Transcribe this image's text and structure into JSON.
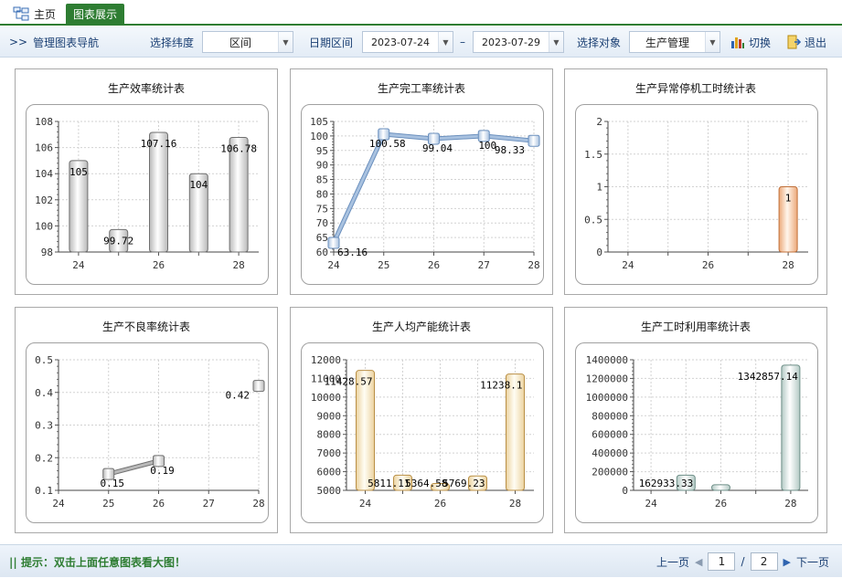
{
  "tabs": {
    "home": "主页",
    "active": "图表展示"
  },
  "toolbar": {
    "nav": "管理图表导航",
    "dim_label": "选择纬度",
    "dim_value": "区间",
    "date_label": "日期区间",
    "date_from": "2023-07-24",
    "date_sep": "–",
    "date_to": "2023-07-29",
    "object_label": "选择对象",
    "object_value": "生产管理",
    "switch_label": "切换",
    "exit_label": "退出"
  },
  "footer": {
    "hint": "|| 提示：双击上面任意图表看大图！",
    "prev": "上一页",
    "page": "1",
    "sep": "/",
    "total": "2",
    "next": "下一页"
  },
  "colors": {
    "accent": "#2e7d32",
    "nav_text": "#1a3f73"
  },
  "chart_data": [
    {
      "type": "bar",
      "title": "生产效率统计表",
      "x": [
        24,
        25,
        26,
        27,
        28
      ],
      "values": [
        105,
        99.72,
        107.16,
        104,
        106.78
      ],
      "labels": [
        "105",
        "99.72",
        "107.16",
        "104",
        "106.78"
      ],
      "ylim": [
        98,
        108
      ],
      "yticks": [
        98,
        100,
        102,
        104,
        106,
        108
      ],
      "xticks": [
        24,
        26,
        28
      ],
      "xlim": [
        23.5,
        28.5
      ],
      "palette": "gray"
    },
    {
      "type": "line",
      "title": "生产完工率统计表",
      "x": [
        24,
        25,
        26,
        27,
        28
      ],
      "values": [
        63.16,
        100.58,
        99.04,
        100,
        98.33
      ],
      "labels": [
        "63.16",
        "100.58",
        "99.04",
        "100",
        "98.33"
      ],
      "ylim": [
        60,
        105
      ],
      "yticks": [
        60,
        65,
        70,
        75,
        80,
        85,
        90,
        95,
        100,
        105
      ],
      "xticks": [
        24,
        25,
        26,
        27,
        28
      ],
      "xlim": [
        24,
        28
      ],
      "palette": "blue"
    },
    {
      "type": "bar",
      "title": "生产异常停机工时统计表",
      "x": [
        28
      ],
      "values": [
        1
      ],
      "labels": [
        "1"
      ],
      "ylim": [
        0,
        2
      ],
      "yticks": [
        0,
        0.5,
        1,
        1.5,
        2
      ],
      "xticks": [
        24,
        26,
        28
      ],
      "xlim": [
        23.5,
        28.5
      ],
      "palette": "orange"
    },
    {
      "type": "line",
      "title": "生产不良率统计表",
      "x": [
        25,
        26,
        28
      ],
      "values": [
        0.15,
        0.19,
        0.42
      ],
      "labels": [
        "0.15",
        "0.19",
        "0.42"
      ],
      "segments": [
        [
          0,
          1
        ]
      ],
      "ylim": [
        0.1,
        0.5
      ],
      "yticks": [
        0.1,
        0.2,
        0.3,
        0.4,
        0.5
      ],
      "xticks": [
        24,
        25,
        26,
        27,
        28
      ],
      "xlim": [
        24,
        28
      ],
      "palette": "gray"
    },
    {
      "type": "bar",
      "title": "生产人均产能统计表",
      "x": [
        24,
        25,
        26,
        27,
        28
      ],
      "values": [
        11428.57,
        5811.11,
        5364.58,
        5769.23,
        11238.1
      ],
      "labels": [
        "11428.57",
        "5811.11",
        "5364.58",
        "5769.23",
        "11238.1"
      ],
      "ylim": [
        5000,
        12000
      ],
      "yticks": [
        5000,
        6000,
        7000,
        8000,
        9000,
        10000,
        11000,
        12000
      ],
      "xticks": [
        24,
        26,
        28
      ],
      "xlim": [
        23.5,
        28.5
      ],
      "palette": "yellow"
    },
    {
      "type": "bar",
      "title": "生产工时利用率统计表",
      "x": [
        25,
        26,
        28
      ],
      "values": [
        162933.33,
        60000,
        1342857.14
      ],
      "labels": [
        "162933.33",
        "",
        "1342857.14"
      ],
      "ylim": [
        0,
        1400000
      ],
      "yticks": [
        0,
        200000,
        400000,
        600000,
        800000,
        1000000,
        1200000,
        1400000
      ],
      "xticks": [
        24,
        26,
        28
      ],
      "xlim": [
        23.5,
        28.5
      ],
      "palette": "teal"
    }
  ]
}
